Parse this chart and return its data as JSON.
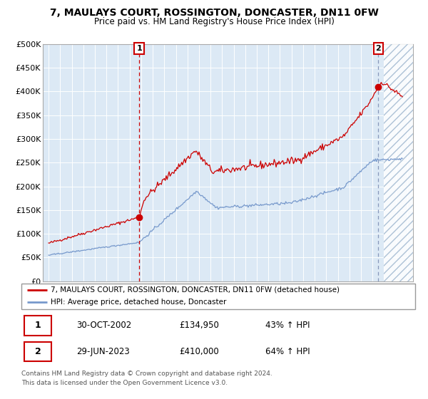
{
  "title": "7, MAULAYS COURT, ROSSINGTON, DONCASTER, DN11 0FW",
  "subtitle": "Price paid vs. HM Land Registry's House Price Index (HPI)",
  "legend_line1": "7, MAULAYS COURT, ROSSINGTON, DONCASTER, DN11 0FW (detached house)",
  "legend_line2": "HPI: Average price, detached house, Doncaster",
  "annotation1_label": "1",
  "annotation1_date": "30-OCT-2002",
  "annotation1_price": "£134,950",
  "annotation1_hpi": "43% ↑ HPI",
  "annotation2_label": "2",
  "annotation2_date": "29-JUN-2023",
  "annotation2_price": "£410,000",
  "annotation2_hpi": "64% ↑ HPI",
  "footer1": "Contains HM Land Registry data © Crown copyright and database right 2024.",
  "footer2": "This data is licensed under the Open Government Licence v3.0.",
  "plot_bg_color": "#dce9f5",
  "red_line_color": "#cc0000",
  "blue_line_color": "#7799cc",
  "marker_color": "#cc0000",
  "sale1_year": 2002.83,
  "sale1_value": 134950,
  "sale2_year": 2023.49,
  "sale2_value": 410000,
  "ylim": [
    0,
    500000
  ],
  "ytick_vals": [
    0,
    50000,
    100000,
    150000,
    200000,
    250000,
    300000,
    350000,
    400000,
    450000,
    500000
  ],
  "ytick_labels": [
    "£0",
    "£50K",
    "£100K",
    "£150K",
    "£200K",
    "£250K",
    "£300K",
    "£350K",
    "£400K",
    "£450K",
    "£500K"
  ],
  "xmin": 1994.5,
  "xmax": 2026.5,
  "hatch_start": 2024.0,
  "hatch_end": 2026.5
}
